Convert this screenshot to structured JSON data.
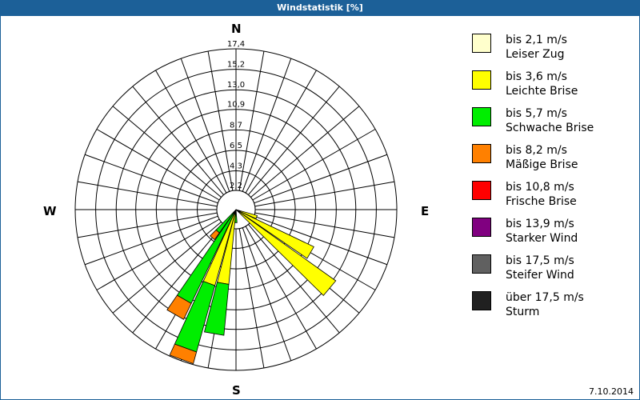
{
  "header": {
    "title": "Windstatistik [%]"
  },
  "compass": {
    "n": "N",
    "e": "E",
    "s": "S",
    "w": "W"
  },
  "footer": {
    "date": "7.10.2014"
  },
  "legend": [
    {
      "label1": "bis 2,1 m/s",
      "label2": "Leiser Zug",
      "color": "#ffffcc"
    },
    {
      "label1": "bis 3,6 m/s",
      "label2": "Leichte Brise",
      "color": "#ffff00"
    },
    {
      "label1": "bis 5,7 m/s",
      "label2": "Schwache Brise",
      "color": "#00ee00"
    },
    {
      "label1": "bis 8,2 m/s",
      "label2": "Mäßige Brise",
      "color": "#ff8000"
    },
    {
      "label1": "bis 10,8 m/s",
      "label2": "Frische Brise",
      "color": "#ff0000"
    },
    {
      "label1": "bis 13,9 m/s",
      "label2": "Starker Wind",
      "color": "#800080"
    },
    {
      "label1": "bis 17,5 m/s",
      "label2": "Steifer Wind",
      "color": "#606060"
    },
    {
      "label1": "über 17,5 m/s",
      "label2": "Sturm",
      "color": "#202020"
    }
  ],
  "chart_data": {
    "type": "wind-rose",
    "title": "Windstatistik [%]",
    "radial_unit": "%",
    "ring_labels": [
      "2,2",
      "4,3",
      "6,5",
      "8,7",
      "10,9",
      "13,0",
      "15,2",
      "17,4"
    ],
    "ring_values": [
      2.2,
      4.3,
      6.5,
      8.7,
      10.9,
      13.0,
      15.2,
      17.4
    ],
    "rmax": 17.4,
    "direction_step_deg": 10,
    "speed_classes": [
      "bis 2,1 m/s",
      "bis 3,6 m/s",
      "bis 5,7 m/s",
      "bis 8,2 m/s",
      "bis 10,8 m/s",
      "bis 13,9 m/s",
      "bis 17,5 m/s",
      "über 17,5 m/s"
    ],
    "petals": [
      {
        "dir": 110,
        "cumulative": [
          {
            "class": "bis 3,6 m/s",
            "to": 2.5
          }
        ]
      },
      {
        "dir": 120,
        "cumulative": [
          {
            "class": "bis 3,6 m/s",
            "to": 9.4
          }
        ]
      },
      {
        "dir": 130,
        "cumulative": [
          {
            "class": "bis 3,6 m/s",
            "to": 13.3
          }
        ]
      },
      {
        "dir": 180,
        "cumulative": [
          {
            "class": "bis 5,7 m/s",
            "to": 1.5
          }
        ]
      },
      {
        "dir": 190,
        "cumulative": [
          {
            "class": "bis 3,6 m/s",
            "to": 8.2
          },
          {
            "class": "bis 5,7 m/s",
            "to": 13.7
          }
        ]
      },
      {
        "dir": 200,
        "cumulative": [
          {
            "class": "bis 3,6 m/s",
            "to": 8.6
          },
          {
            "class": "bis 5,7 m/s",
            "to": 16.0
          },
          {
            "class": "bis 8,2 m/s",
            "to": 17.3
          }
        ]
      },
      {
        "dir": 210,
        "cumulative": [
          {
            "class": "bis 5,7 m/s",
            "to": 11.3
          },
          {
            "class": "bis 8,2 m/s",
            "to": 13.2
          }
        ]
      },
      {
        "dir": 220,
        "cumulative": [
          {
            "class": "bis 5,7 m/s",
            "to": 3.2
          },
          {
            "class": "bis 8,2 m/s",
            "to": 4.1
          }
        ]
      }
    ],
    "legend_position": "right",
    "grid": true
  }
}
